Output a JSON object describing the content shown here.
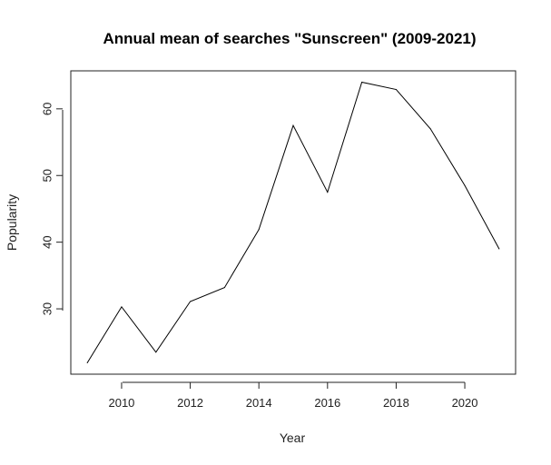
{
  "chart_data": {
    "type": "line",
    "title": "Annual mean of searches \"Sunscreen\" (2009-2021)",
    "xlabel": "Year",
    "ylabel": "Popularity",
    "x": [
      2009,
      2010,
      2011,
      2012,
      2013,
      2014,
      2015,
      2016,
      2017,
      2018,
      2019,
      2020,
      2021
    ],
    "series": [
      {
        "values": [
          21.9,
          30.3,
          23.5,
          31.1,
          33.2,
          41.9,
          57.5,
          47.5,
          64.0,
          62.9,
          57.0,
          48.5,
          39.0
        ]
      }
    ],
    "xlim": [
      2008.52,
      2021.48
    ],
    "ylim": [
      20.2,
      65.7
    ],
    "x_ticks": [
      2010,
      2012,
      2014,
      2016,
      2018,
      2020
    ],
    "y_ticks": [
      30,
      40,
      50,
      60
    ],
    "grid": false,
    "legend": "none",
    "line_color": "#000000"
  }
}
